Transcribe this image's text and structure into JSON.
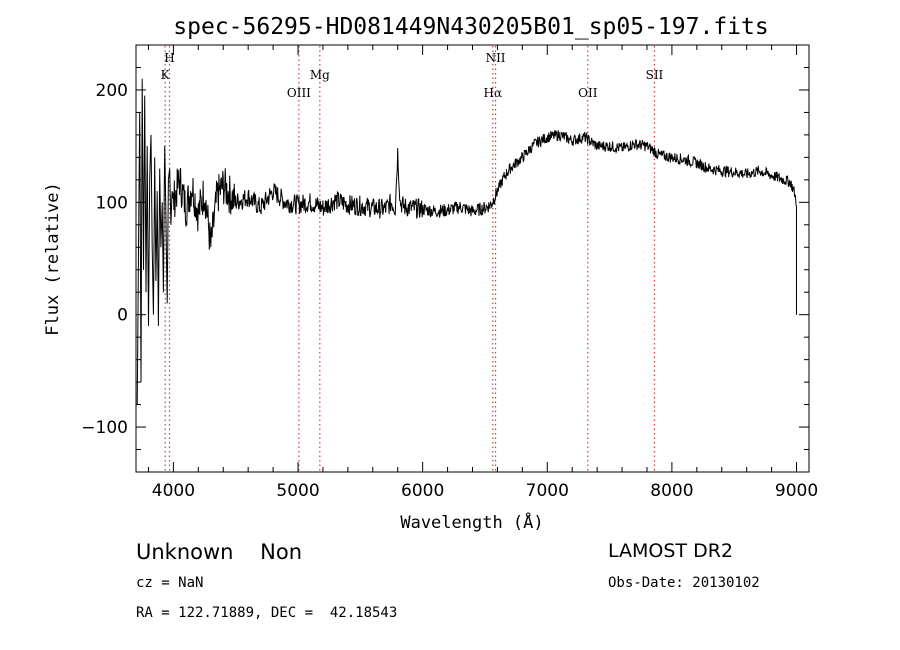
{
  "chart_data": {
    "type": "line",
    "title": "spec-56295-HD081449N430205B01_sp05-197.fits",
    "xlabel": "Wavelength (Å)",
    "ylabel": "Flux (relative)",
    "xlim": [
      3700,
      9100
    ],
    "ylim": [
      -140,
      240
    ],
    "xticks": [
      4000,
      5000,
      6000,
      7000,
      8000,
      9000
    ],
    "yticks": [
      -100,
      0,
      100,
      200
    ],
    "grid": false,
    "line_color": "#000000",
    "marker_color": "#d04040",
    "lines": [
      {
        "name": "K",
        "x": 3934,
        "row": 2
      },
      {
        "name": "H",
        "x": 3969,
        "row": 1
      },
      {
        "name": "OIII",
        "x": 5007,
        "row": 3
      },
      {
        "name": "Mg",
        "x": 5175,
        "row": 2
      },
      {
        "name": "Hα",
        "x": 6563,
        "row": 3
      },
      {
        "name": "NII",
        "x": 6585,
        "row": 1
      },
      {
        "name": "OII",
        "x": 7325,
        "row": 3
      },
      {
        "name": "SII",
        "x": 7860,
        "row": 2
      }
    ],
    "series": [
      {
        "x": [
          3710,
          3720,
          3730,
          3740,
          3750,
          3760,
          3770,
          3780,
          3790,
          3800,
          3810,
          3820,
          3830,
          3840,
          3850,
          3860,
          3870,
          3880,
          3890,
          3900,
          3910,
          3920,
          3930,
          3940,
          3950,
          3960,
          3970,
          3980,
          3990,
          4000,
          4050,
          4100,
          4150,
          4200,
          4250,
          4300,
          4350,
          4400,
          4500,
          4600,
          4700,
          4800,
          4900,
          5000,
          5100,
          5200,
          5300,
          5400,
          5500,
          5600,
          5700,
          5750,
          5780,
          5800,
          5820,
          5850,
          5900,
          6000,
          6100,
          6200,
          6300,
          6400,
          6500,
          6550,
          6600,
          6650,
          6700,
          6800,
          6900,
          7000,
          7100,
          7200,
          7300,
          7400,
          7500,
          7600,
          7700,
          7800,
          7900,
          8000,
          8100,
          8200,
          8300,
          8400,
          8500,
          8600,
          8700,
          8800,
          8900,
          8950,
          8980,
          9000,
          9000
        ],
        "y": [
          -80,
          60,
          180,
          -60,
          210,
          40,
          195,
          20,
          150,
          -10,
          120,
          160,
          60,
          0,
          140,
          30,
          110,
          -10,
          130,
          60,
          100,
          20,
          150,
          90,
          10,
          120,
          130,
          80,
          110,
          100,
          120,
          95,
          115,
          90,
          110,
          60,
          105,
          115,
          100,
          105,
          95,
          110,
          100,
          98,
          100,
          95,
          102,
          98,
          97,
          95,
          94,
          100,
          95,
          145,
          100,
          96,
          95,
          94,
          92,
          93,
          96,
          92,
          95,
          98,
          110,
          122,
          130,
          140,
          152,
          158,
          160,
          155,
          158,
          150,
          150,
          148,
          152,
          150,
          142,
          140,
          138,
          135,
          130,
          128,
          127,
          125,
          128,
          124,
          120,
          118,
          110,
          100,
          0
        ]
      }
    ]
  },
  "info": {
    "class_line": "Unknown    Non",
    "survey": "LAMOST DR2",
    "cz_line": "cz = NaN",
    "obs_date_line": "Obs-Date: 20130102",
    "radec_line": "RA = 122.71889, DEC =  42.18543"
  }
}
